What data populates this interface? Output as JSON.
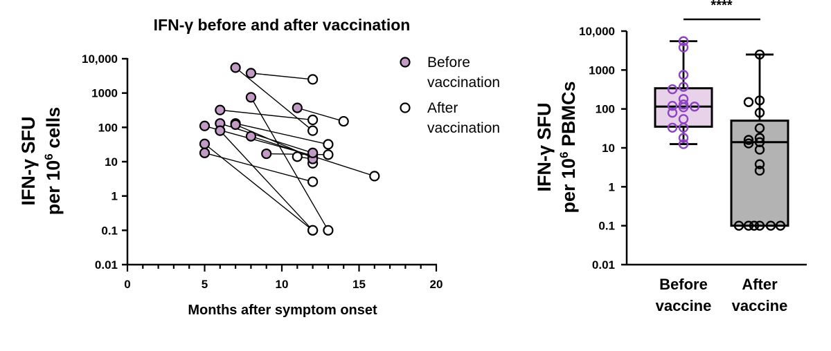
{
  "chart_data": [
    {
      "type": "scatter",
      "title": "IFN-γ before and after vaccination",
      "xlabel": "Months after symptom onset",
      "ylabel_line1": "IFN-γ SFU",
      "ylabel_line2_prefix": "per 10",
      "ylabel_line2_sup": "6",
      "ylabel_line2_suffix": " cells",
      "x_ticks": [
        "0",
        "5",
        "10",
        "15",
        "20"
      ],
      "xlim": [
        0,
        20
      ],
      "y_scale": "log",
      "ylim": [
        0.01,
        10000
      ],
      "y_ticks": [
        "0.01",
        "0.1",
        "1",
        "10",
        "100",
        "1000",
        "10,000"
      ],
      "series": [
        {
          "name": "Before vaccination",
          "color": "#c29ac6"
        },
        {
          "name": "After vaccination",
          "color": "#ffffff"
        }
      ],
      "legend_position": "top-right",
      "pairs": [
        {
          "before": [
            5,
            110
          ],
          "after": [
            12,
            15
          ]
        },
        {
          "before": [
            5,
            33
          ],
          "after": [
            12,
            0.1
          ]
        },
        {
          "before": [
            5,
            18
          ],
          "after": [
            12,
            2.6
          ]
        },
        {
          "before": [
            6,
            130
          ],
          "after": [
            12,
            18
          ]
        },
        {
          "before": [
            6,
            80
          ],
          "after": [
            12,
            0.1
          ]
        },
        {
          "before": [
            6,
            320
          ],
          "after": [
            12,
            165
          ]
        },
        {
          "before": [
            7,
            130
          ],
          "after": [
            13,
            32
          ]
        },
        {
          "before": [
            7,
            120
          ],
          "after": [
            12,
            13
          ]
        },
        {
          "before": [
            7,
            5500
          ],
          "after": [
            12,
            80
          ]
        },
        {
          "before": [
            8,
            3800
          ],
          "after": [
            12,
            2500
          ]
        },
        {
          "before": [
            8,
            750
          ],
          "after": [
            13,
            0.1
          ]
        },
        {
          "before": [
            8,
            55
          ],
          "after": [
            16,
            3.8
          ]
        },
        {
          "before": [
            9,
            17
          ],
          "after": [
            13,
            16
          ]
        },
        {
          "before": [
            11,
            370
          ],
          "after": [
            14,
            150
          ]
        },
        {
          "before": [
            12,
            12
          ],
          "after": [
            11,
            14
          ]
        },
        {
          "before": [
            12,
            18
          ],
          "after": [
            12,
            9
          ]
        }
      ]
    },
    {
      "type": "box",
      "ylabel_line1": "IFN-γ SFU",
      "ylabel_line2_prefix": "per 10",
      "ylabel_line2_sup": "6",
      "ylabel_line2_suffix": " PBMCs",
      "y_scale": "log",
      "ylim": [
        0.01,
        10000
      ],
      "y_ticks": [
        "0.01",
        "0.1",
        "1",
        "10",
        "100",
        "1000",
        "10,000"
      ],
      "significance": "****",
      "groups": [
        {
          "label_line1": "Before",
          "label_line2": "vaccine",
          "fill": "#e8d2e9",
          "point_color": "#8e44c2",
          "min": 12.5,
          "q1": 35,
          "median": 115,
          "q3": 340,
          "max": 5500,
          "points": [
            5500,
            3800,
            750,
            370,
            320,
            180,
            130,
            120,
            115,
            110,
            80,
            55,
            33,
            33,
            18,
            12.5
          ]
        },
        {
          "label_line1": "After",
          "label_line2": "vaccine",
          "fill": "#b3b3b3",
          "point_color": "#000000",
          "min": 0.1,
          "q1": 0.1,
          "median": 14,
          "q3": 50,
          "max": 2500,
          "points": [
            2500,
            165,
            150,
            80,
            32,
            18,
            16,
            14,
            13,
            9,
            3.8,
            2.6,
            0.1,
            0.1,
            0.1,
            0.1,
            0.1,
            0.1
          ]
        }
      ]
    }
  ]
}
